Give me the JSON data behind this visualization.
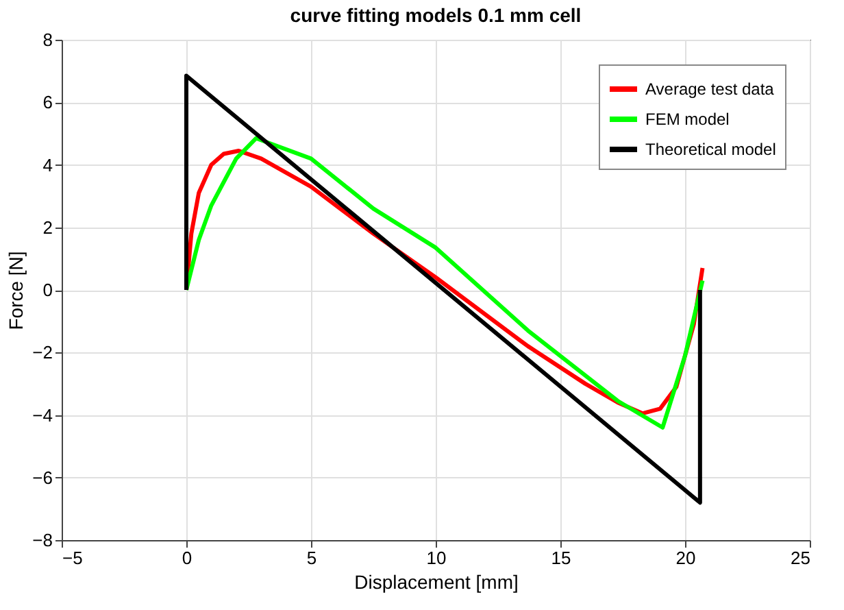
{
  "chart_data": {
    "type": "line",
    "title": "curve fitting models 0.1 mm cell",
    "xlabel": "Displacement [mm]",
    "ylabel": "Force [N]",
    "xlim": [
      -5,
      25
    ],
    "xticks": [
      -5,
      0,
      5,
      10,
      15,
      20,
      25
    ],
    "ylim": [
      -8,
      8
    ],
    "yticks": [
      -8,
      -6,
      -4,
      -2,
      0,
      2,
      4,
      6,
      8
    ],
    "grid": true,
    "legend": "top right",
    "line_style": "solid",
    "marker": "none",
    "series": [
      {
        "name": "Average test data",
        "color": "#ff0000",
        "x": [
          0,
          0.2,
          0.5,
          1,
          1.5,
          2.1,
          3,
          5,
          7.5,
          10,
          13.7,
          16,
          17.3,
          18.3,
          19,
          19.65,
          20.35,
          20.7
        ],
        "values": [
          0,
          1.8,
          3.1,
          4.0,
          4.35,
          4.45,
          4.2,
          3.3,
          1.8,
          0.4,
          -1.8,
          -3.0,
          -3.6,
          -3.95,
          -3.8,
          -3.1,
          -1.1,
          0.7
        ]
      },
      {
        "name": "FEM model",
        "color": "#00ff00",
        "x": [
          0,
          0.5,
          1,
          2,
          2.8,
          5,
          7.5,
          10,
          13.7,
          17.3,
          19.1,
          20,
          20.7
        ],
        "values": [
          0,
          1.6,
          2.7,
          4.2,
          4.85,
          4.2,
          2.6,
          1.35,
          -1.3,
          -3.55,
          -4.4,
          -2.1,
          0.3
        ]
      },
      {
        "name": "Theoretical model",
        "color": "#000000",
        "x": [
          0,
          0,
          20.6,
          20.6
        ],
        "values": [
          0,
          6.85,
          -6.8,
          0
        ]
      }
    ]
  }
}
